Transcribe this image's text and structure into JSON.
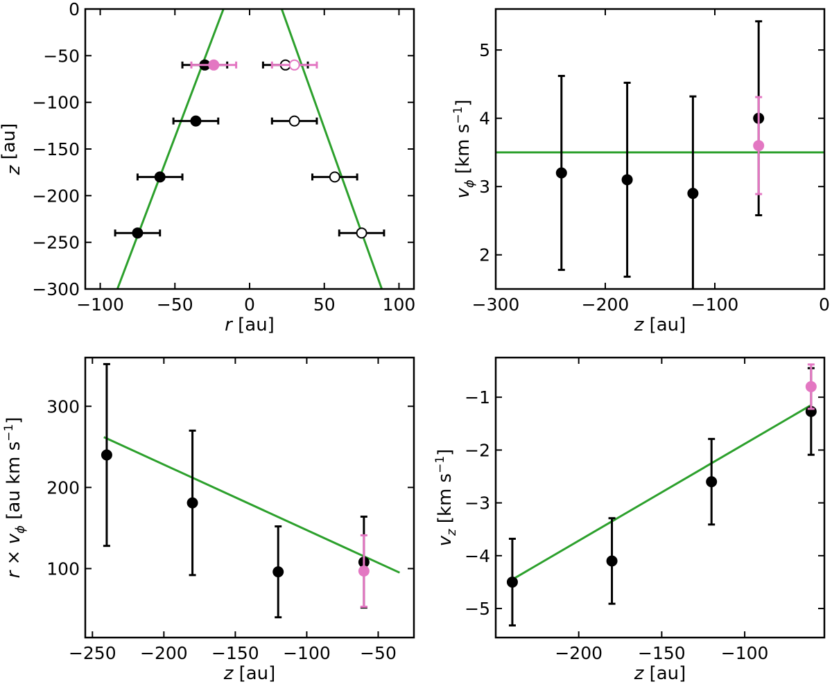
{
  "colors": {
    "black": "#000000",
    "pink": "#e377c2",
    "green": "#2ca02c",
    "white": "#ffffff"
  },
  "chart_data": [
    {
      "id": "panel_a",
      "type": "scatter",
      "xlabel_var": "r",
      "xlabel_unit": " [au]",
      "ylabel_var": "z",
      "ylabel_unit": " [au]",
      "xlim": [
        -110,
        110
      ],
      "ylim": [
        -300,
        0
      ],
      "xticks": [
        -100,
        -50,
        0,
        50,
        100
      ],
      "yticks": [
        -300,
        -250,
        -200,
        -150,
        -100,
        -50,
        0
      ],
      "lines": [
        {
          "name": "fit-left",
          "color": "green",
          "points": [
            [
              -17.5,
              0
            ],
            [
              -88.5,
              -300
            ]
          ]
        },
        {
          "name": "fit-right",
          "color": "green",
          "points": [
            [
              21.5,
              0
            ],
            [
              88.5,
              -300
            ]
          ]
        }
      ],
      "series": [
        {
          "color": "black",
          "fill": "black",
          "points": [
            {
              "x": -30,
              "y": -60,
              "xerr": 15
            },
            {
              "x": -36,
              "y": -120,
              "xerr": 15
            },
            {
              "x": -60,
              "y": -180,
              "xerr": 15
            },
            {
              "x": -75,
              "y": -240,
              "xerr": 15
            }
          ]
        },
        {
          "color": "black",
          "fill": "white",
          "points": [
            {
              "x": 24,
              "y": -60,
              "xerr": 15
            },
            {
              "x": 30,
              "y": -120,
              "xerr": 15
            },
            {
              "x": 57,
              "y": -180,
              "xerr": 15
            },
            {
              "x": 75,
              "y": -240,
              "xerr": 15
            }
          ]
        },
        {
          "color": "pink",
          "fill": "pink",
          "points": [
            {
              "x": -24,
              "y": -60,
              "xerr": 15
            }
          ]
        },
        {
          "color": "pink",
          "fill": "white",
          "points": [
            {
              "x": 30,
              "y": -60,
              "xerr": 15
            }
          ]
        }
      ]
    },
    {
      "id": "panel_b",
      "type": "scatter",
      "xlabel_var": "z",
      "xlabel_unit": " [au]",
      "ylabel_var": "v",
      "ylabel_sub": "ϕ",
      "ylabel_unit": " [km s",
      "ylabel_sup": "−1",
      "ylabel_close": "]",
      "xlim": [
        -300,
        0
      ],
      "ylim": [
        1.5,
        5.6
      ],
      "xticks": [
        -300,
        -200,
        -100,
        0
      ],
      "yticks": [
        2,
        3,
        4,
        5
      ],
      "lines": [
        {
          "name": "fit",
          "color": "green",
          "points": [
            [
              -300,
              3.5
            ],
            [
              0,
              3.5
            ]
          ]
        }
      ],
      "series": [
        {
          "color": "black",
          "fill": "black",
          "points": [
            {
              "x": -240,
              "y": 3.2,
              "yerr": 1.42
            },
            {
              "x": -180,
              "y": 3.1,
              "yerr": 1.42
            },
            {
              "x": -120,
              "y": 2.9,
              "yerr": 1.42
            },
            {
              "x": -60,
              "y": 4.0,
              "yerr": 1.42
            }
          ]
        },
        {
          "color": "pink",
          "fill": "pink",
          "points": [
            {
              "x": -60,
              "y": 3.6,
              "yerr": 0.71
            }
          ]
        }
      ]
    },
    {
      "id": "panel_c",
      "type": "scatter",
      "xlabel_var": "z",
      "xlabel_unit": " [au]",
      "ylabel_var": "r",
      "ylabel_mid": " × ",
      "ylabel_var2": "v",
      "ylabel_sub": "ϕ",
      "ylabel_unit": " [au km s",
      "ylabel_sup": "−1",
      "ylabel_close": "]",
      "xlim": [
        -255,
        -25
      ],
      "ylim": [
        15,
        360
      ],
      "xticks": [
        -250,
        -200,
        -150,
        -100,
        -50
      ],
      "yticks": [
        100,
        200,
        300
      ],
      "lines": [
        {
          "name": "fit",
          "color": "green",
          "points": [
            [
              -242,
              262
            ],
            [
              -35,
              95
            ]
          ]
        }
      ],
      "series": [
        {
          "color": "black",
          "fill": "black",
          "points": [
            {
              "x": -240,
              "y": 240,
              "yerr": 112
            },
            {
              "x": -180,
              "y": 181,
              "yerr": 89
            },
            {
              "x": -120,
              "y": 96,
              "yerr": 56
            },
            {
              "x": -60,
              "y": 108,
              "yerr": 56
            }
          ]
        },
        {
          "color": "pink",
          "fill": "pink",
          "points": [
            {
              "x": -60,
              "y": 97,
              "yerr": 44
            }
          ]
        }
      ]
    },
    {
      "id": "panel_d",
      "type": "scatter",
      "xlabel_var": "z",
      "xlabel_unit": " [au]",
      "ylabel_var": "v",
      "ylabel_sub": "z",
      "ylabel_unit": " [km s",
      "ylabel_sup": "−1",
      "ylabel_close": "]",
      "xlim": [
        -250,
        -52
      ],
      "ylim": [
        -5.55,
        -0.25
      ],
      "xticks": [
        -200,
        -150,
        -100
      ],
      "yticks": [
        -5,
        -4,
        -3,
        -2,
        -1
      ],
      "lines": [
        {
          "name": "fit",
          "color": "green",
          "points": [
            [
              -240,
              -4.45
            ],
            [
              -60,
              -1.15
            ]
          ]
        }
      ],
      "series": [
        {
          "color": "black",
          "fill": "black",
          "points": [
            {
              "x": -240,
              "y": -4.5,
              "yerr": 0.82
            },
            {
              "x": -180,
              "y": -4.1,
              "yerr": 0.81
            },
            {
              "x": -120,
              "y": -2.6,
              "yerr": 0.81
            },
            {
              "x": -60,
              "y": -1.27,
              "yerr": 0.82
            }
          ]
        },
        {
          "color": "pink",
          "fill": "pink",
          "points": [
            {
              "x": -60,
              "y": -0.8,
              "yerr": 0.42
            }
          ]
        }
      ]
    }
  ]
}
